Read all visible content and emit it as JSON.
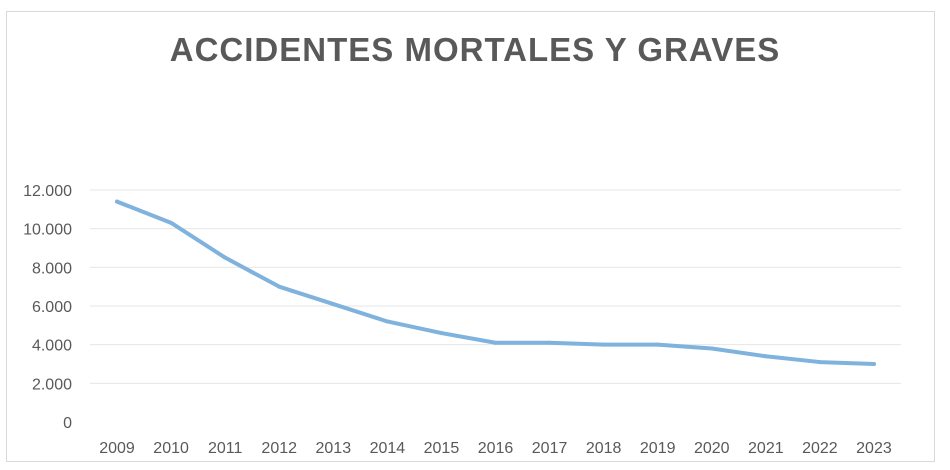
{
  "chart_data": {
    "type": "line",
    "title": "ACCIDENTES MORTALES Y GRAVES",
    "xlabel": "",
    "ylabel": "",
    "categories": [
      "2009",
      "2010",
      "2011",
      "2012",
      "2013",
      "2014",
      "2015",
      "2016",
      "2017",
      "2018",
      "2019",
      "2020",
      "2021",
      "2022",
      "2023"
    ],
    "series": [
      {
        "values": [
          11400,
          10300,
          8500,
          7000,
          6100,
          5200,
          4600,
          4100,
          4100,
          4000,
          4000,
          3800,
          3400,
          3100,
          3000
        ]
      }
    ],
    "ylim": [
      0,
      12000
    ],
    "yticks": [
      0,
      2000,
      4000,
      6000,
      8000,
      10000,
      12000
    ],
    "ytick_labels": [
      "0",
      "2.000",
      "4.000",
      "6.000",
      "8.000",
      "10.000",
      "12.000"
    ],
    "grid": true,
    "legend": "none",
    "colors": {
      "line": "#7fb2dc",
      "grid": "#e6e6e6",
      "text": "#595959"
    }
  }
}
